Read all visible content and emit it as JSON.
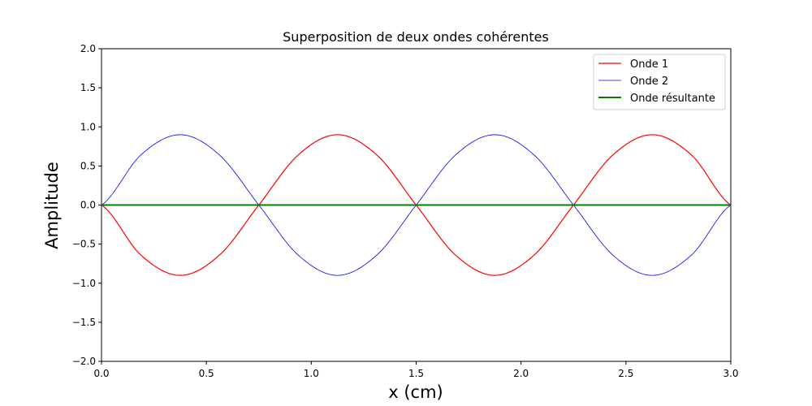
{
  "chart_data": {
    "type": "line",
    "title": "Superposition de deux ondes cohérentes",
    "xlabel": "x (cm)",
    "ylabel": "Amplitude",
    "xlim": [
      0.0,
      3.0
    ],
    "ylim": [
      -2.0,
      2.0
    ],
    "x_ticks": [
      "0.0",
      "0.5",
      "1.0",
      "1.5",
      "2.0",
      "2.5",
      "3.0"
    ],
    "y_ticks": [
      "2.0",
      "1.5",
      "1.0",
      "0.5",
      "0.0",
      "−0.5",
      "−1.0",
      "−1.5",
      "−2.0"
    ],
    "grid": false,
    "legend_position": "top-right",
    "series": [
      {
        "name": "Onde 1",
        "color": "#ff0000",
        "x": [
          0.0,
          0.1875,
          0.375,
          0.5625,
          0.75,
          0.9375,
          1.125,
          1.3125,
          1.5,
          1.6875,
          1.875,
          2.0625,
          2.25,
          2.4375,
          2.625,
          2.8125,
          3.0
        ],
        "y": [
          0.0,
          -0.64,
          -0.9,
          -0.64,
          0.0,
          0.64,
          0.9,
          0.64,
          0.0,
          -0.64,
          -0.9,
          -0.64,
          0.0,
          0.64,
          0.9,
          0.64,
          0.0
        ]
      },
      {
        "name": "Onde 2",
        "color": "#0000ff",
        "x": [
          0.0,
          0.1875,
          0.375,
          0.5625,
          0.75,
          0.9375,
          1.125,
          1.3125,
          1.5,
          1.6875,
          1.875,
          2.0625,
          2.25,
          2.4375,
          2.625,
          2.8125,
          3.0
        ],
        "y": [
          0.0,
          0.64,
          0.9,
          0.64,
          0.0,
          -0.64,
          -0.9,
          -0.64,
          0.0,
          0.64,
          0.9,
          0.64,
          0.0,
          -0.64,
          -0.9,
          -0.64,
          0.0
        ]
      },
      {
        "name": "Onde résultante",
        "color": "#008000",
        "x": [
          0.0,
          0.75,
          1.5,
          2.25,
          3.0
        ],
        "y": [
          0.0,
          0.0,
          0.0,
          0.0,
          0.0
        ]
      }
    ]
  }
}
